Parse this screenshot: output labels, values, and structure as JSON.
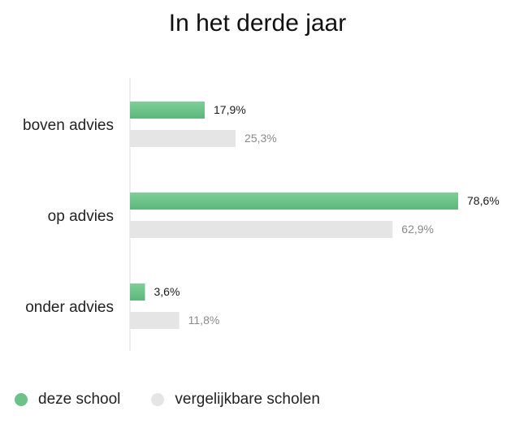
{
  "chart_data": {
    "type": "bar",
    "orientation": "horizontal",
    "title": "In het derde jaar",
    "categories": [
      "boven advies",
      "op advies",
      "onder advies"
    ],
    "series": [
      {
        "name": "deze school",
        "values": [
          17.9,
          78.6,
          3.6
        ],
        "labels": [
          "17,9%",
          "78,6%",
          "3,6%"
        ],
        "color": "#6cc28a"
      },
      {
        "name": "vergelijkbare scholen",
        "values": [
          25.3,
          62.9,
          11.8
        ],
        "labels": [
          "25,3%",
          "62,9%",
          "11,8%"
        ],
        "color": "#e5e5e5"
      }
    ],
    "xlim": [
      0,
      100
    ],
    "grid": false,
    "legend_position": "bottom-left"
  }
}
